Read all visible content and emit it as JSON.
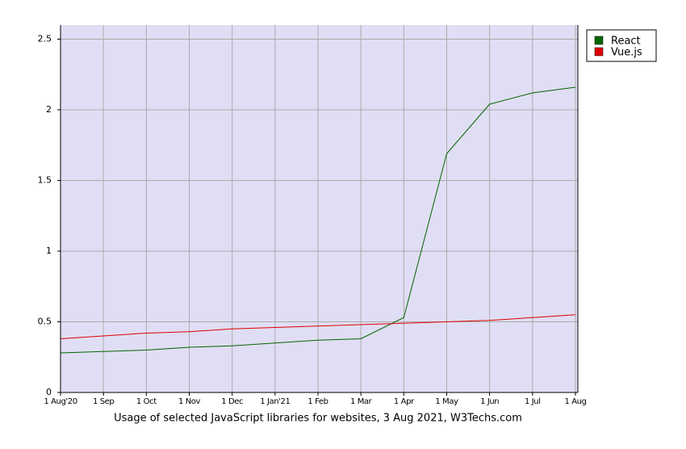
{
  "chart_data": {
    "type": "line",
    "caption": "Usage of selected JavaScript libraries for websites, 3 Aug 2021, W3Techs.com",
    "categories": [
      "1 Aug'20",
      "1 Sep",
      "1 Oct",
      "1 Nov",
      "1 Dec",
      "1 Jan'21",
      "1 Feb",
      "1 Mar",
      "1 Apr",
      "1 May",
      "1 Jun",
      "1 Jul",
      "1 Aug"
    ],
    "series": [
      {
        "name": "React",
        "color": "#006600",
        "values": [
          0.28,
          0.29,
          0.3,
          0.32,
          0.33,
          0.35,
          0.37,
          0.38,
          0.53,
          1.69,
          2.04,
          2.12,
          2.16
        ]
      },
      {
        "name": "Vue.js",
        "color": "#dd0000",
        "values": [
          0.38,
          0.4,
          0.42,
          0.43,
          0.45,
          0.46,
          0.47,
          0.48,
          0.49,
          0.5,
          0.51,
          0.53,
          0.55
        ]
      }
    ],
    "ylim": [
      0,
      2.6
    ],
    "yticks": [
      0,
      0.5,
      1,
      1.5,
      2,
      2.5
    ],
    "grid": true,
    "legend": "top-right"
  }
}
